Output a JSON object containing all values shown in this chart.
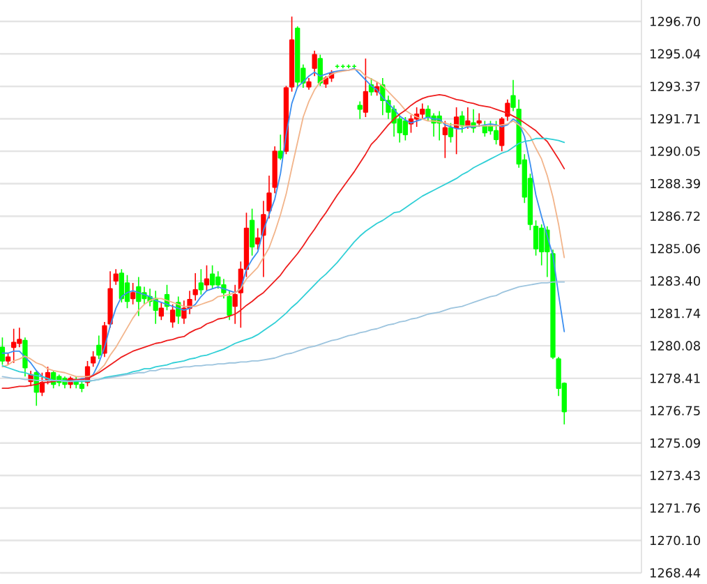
{
  "chart_data": {
    "type": "candlestick",
    "categories": [
      null,
      null,
      null,
      null,
      null,
      null,
      null,
      null,
      null,
      null,
      null,
      null,
      null,
      null,
      null,
      null,
      null,
      null,
      null,
      null,
      null,
      null,
      null,
      null,
      null,
      null,
      null,
      null,
      null,
      null,
      null,
      null,
      null,
      null,
      null,
      null,
      null,
      null,
      null,
      null,
      null,
      null,
      null,
      null,
      null,
      null,
      null,
      null,
      null,
      null,
      null,
      null,
      null,
      null,
      null,
      null,
      null,
      null,
      null,
      null,
      null,
      null,
      null,
      null,
      null,
      null,
      null,
      null,
      null,
      null,
      null,
      null,
      null,
      null,
      null,
      null,
      null,
      null,
      null,
      null,
      null,
      null,
      null,
      null,
      null,
      null,
      null,
      null,
      null,
      null,
      null,
      null,
      null,
      null,
      null,
      null,
      null,
      null,
      null,
      null
    ],
    "ohlc": [
      [
        1280.0,
        1280.5,
        1279.1,
        1279.3
      ],
      [
        1279.3,
        1279.7,
        1279.1,
        1279.5
      ],
      [
        1280.0,
        1280.95,
        1279.2,
        1280.25
      ],
      [
        1280.2,
        1281.0,
        1280.0,
        1280.4
      ],
      [
        1280.35,
        1280.5,
        1278.5,
        1278.95
      ],
      [
        1278.25,
        1278.8,
        1278.0,
        1278.6
      ],
      [
        1278.7,
        1278.8,
        1277.0,
        1277.7
      ],
      [
        1277.7,
        1278.7,
        1277.5,
        1278.2
      ],
      [
        1278.3,
        1279.0,
        1278.1,
        1278.7
      ],
      [
        1278.7,
        1278.8,
        1277.9,
        1278.1
      ],
      [
        1278.5,
        1278.6,
        1278.0,
        1278.2
      ],
      [
        1278.4,
        1278.5,
        1277.9,
        1278.1
      ],
      [
        1278.1,
        1278.5,
        1277.9,
        1278.4
      ],
      [
        1278.3,
        1278.5,
        1277.9,
        1278.1
      ],
      [
        1278.1,
        1278.3,
        1277.7,
        1277.9
      ],
      [
        1278.2,
        1279.3,
        1278.0,
        1279.0
      ],
      [
        1279.2,
        1279.8,
        1279.0,
        1279.5
      ],
      [
        1280.1,
        1280.6,
        1279.4,
        1279.6
      ],
      [
        1279.7,
        1281.3,
        1279.5,
        1281.1
      ],
      [
        1281.2,
        1283.9,
        1281.0,
        1283.0
      ],
      [
        1283.4,
        1284.0,
        1283.2,
        1283.75
      ],
      [
        1283.8,
        1284.0,
        1282.3,
        1282.5
      ],
      [
        1283.3,
        1283.7,
        1282.0,
        1282.35
      ],
      [
        1282.5,
        1283.3,
        1282.2,
        1282.8
      ],
      [
        1283.1,
        1283.6,
        1281.6,
        1282.35
      ],
      [
        1282.8,
        1283.1,
        1282.2,
        1282.5
      ],
      [
        1282.6,
        1283.0,
        1282.1,
        1282.35
      ],
      [
        1282.5,
        1282.9,
        1281.2,
        1281.9
      ],
      [
        1281.6,
        1282.3,
        1281.4,
        1282.0
      ],
      [
        1282.7,
        1283.2,
        1281.9,
        1282.1
      ],
      [
        1281.3,
        1282.2,
        1281.0,
        1281.9
      ],
      [
        1282.3,
        1282.6,
        1281.2,
        1281.6
      ],
      [
        1281.5,
        1282.4,
        1281.2,
        1282.0
      ],
      [
        1282.0,
        1282.9,
        1281.7,
        1282.45
      ],
      [
        1282.7,
        1283.8,
        1282.4,
        1282.95
      ],
      [
        1283.3,
        1284.0,
        1282.7,
        1282.95
      ],
      [
        1283.2,
        1284.2,
        1282.9,
        1283.5
      ],
      [
        1283.75,
        1284.2,
        1283.0,
        1283.2
      ],
      [
        1283.6,
        1283.9,
        1283.0,
        1283.2
      ],
      [
        1283.2,
        1283.5,
        1282.5,
        1282.8
      ],
      [
        1282.6,
        1282.9,
        1281.4,
        1281.65
      ],
      [
        1282.1,
        1283.2,
        1281.2,
        1282.7
      ],
      [
        1282.8,
        1284.4,
        1281.0,
        1284.0
      ],
      [
        1284.0,
        1286.9,
        1283.6,
        1286.1
      ],
      [
        1286.5,
        1287.1,
        1284.7,
        1285.15
      ],
      [
        1285.3,
        1286.1,
        1285.0,
        1285.6
      ],
      [
        1285.75,
        1287.5,
        1283.6,
        1286.8
      ],
      [
        1287.0,
        1288.8,
        1286.6,
        1287.9
      ],
      [
        1288.2,
        1290.3,
        1287.9,
        1290.05
      ],
      [
        1290.05,
        1290.9,
        1289.6,
        1289.7
      ],
      [
        1290.05,
        1293.4,
        1289.9,
        1293.3
      ],
      [
        1293.35,
        1296.95,
        1293.1,
        1295.75
      ],
      [
        1296.35,
        1296.45,
        1293.3,
        1293.6
      ],
      [
        1294.3,
        1294.5,
        1293.3,
        1293.55
      ],
      [
        1293.35,
        1293.8,
        1293.2,
        1293.6
      ],
      [
        1294.3,
        1295.2,
        1293.9,
        1295.0
      ],
      [
        1294.8,
        1295.0,
        1293.4,
        1293.55
      ],
      [
        1293.5,
        1293.9,
        1293.3,
        1293.8
      ],
      [
        1293.8,
        1294.2,
        1293.6,
        1294.05
      ],
      [
        1294.4,
        1294.5,
        1294.3,
        1294.4
      ],
      [
        1294.4,
        1294.5,
        1294.3,
        1294.4
      ],
      [
        1294.4,
        1294.5,
        1294.3,
        1294.4
      ],
      [
        1294.4,
        1294.5,
        1294.3,
        1294.4
      ],
      [
        1292.4,
        1292.6,
        1291.7,
        1292.2
      ],
      [
        1292.05,
        1294.8,
        1291.8,
        1293.1
      ],
      [
        1293.45,
        1293.8,
        1292.9,
        1293.1
      ],
      [
        1293.1,
        1293.6,
        1292.9,
        1293.35
      ],
      [
        1293.45,
        1293.8,
        1291.9,
        1292.65
      ],
      [
        1292.65,
        1292.9,
        1291.7,
        1292.05
      ],
      [
        1292.2,
        1292.4,
        1290.8,
        1291.5
      ],
      [
        1291.7,
        1291.9,
        1290.5,
        1291.0
      ],
      [
        1291.6,
        1291.8,
        1290.6,
        1290.9
      ],
      [
        1291.45,
        1291.9,
        1291.0,
        1291.7
      ],
      [
        1291.7,
        1292.3,
        1291.3,
        1291.95
      ],
      [
        1291.95,
        1292.5,
        1291.7,
        1292.2
      ],
      [
        1292.2,
        1292.4,
        1291.6,
        1291.8
      ],
      [
        1291.85,
        1292.0,
        1290.8,
        1291.5
      ],
      [
        1291.85,
        1292.1,
        1290.6,
        1291.5
      ],
      [
        1290.9,
        1291.6,
        1289.7,
        1291.25
      ],
      [
        1291.25,
        1291.5,
        1290.5,
        1290.8
      ],
      [
        1291.25,
        1292.3,
        1289.9,
        1291.8
      ],
      [
        1291.85,
        1292.1,
        1291.0,
        1291.35
      ],
      [
        1291.35,
        1292.3,
        1291.2,
        1291.6
      ],
      [
        1291.5,
        1292.2,
        1291.0,
        1291.25
      ],
      [
        1291.5,
        1292.0,
        1291.3,
        1291.6
      ],
      [
        1291.35,
        1291.6,
        1290.8,
        1291.0
      ],
      [
        1291.35,
        1291.6,
        1290.9,
        1291.1
      ],
      [
        1291.1,
        1291.6,
        1290.4,
        1290.65
      ],
      [
        1290.35,
        1291.8,
        1290.05,
        1291.7
      ],
      [
        1291.85,
        1292.7,
        1291.6,
        1292.5
      ],
      [
        1292.9,
        1293.7,
        1292.1,
        1292.3
      ],
      [
        1292.2,
        1292.7,
        1289.2,
        1289.4
      ],
      [
        1289.6,
        1289.9,
        1287.4,
        1287.7
      ],
      [
        1288.65,
        1288.9,
        1286.0,
        1286.3
      ],
      [
        1286.2,
        1286.5,
        1284.7,
        1285.05
      ],
      [
        1286.1,
        1286.3,
        1284.2,
        1284.9
      ],
      [
        1286.0,
        1286.2,
        1283.6,
        1284.9
      ],
      [
        1284.8,
        1285.0,
        1279.4,
        1279.5
      ],
      [
        1279.4,
        1279.5,
        1277.5,
        1277.9
      ],
      [
        1278.15,
        1278.2,
        1276.05,
        1276.7
      ]
    ],
    "colors": [
      "#00ff00",
      "#ff0000",
      "#ff0000",
      "#ff0000",
      "#00ff00",
      "#ff0000",
      "#00ff00",
      "#ff0000",
      "#ff0000",
      "#00ff00",
      "#00ff00",
      "#00ff00",
      "#ff0000",
      "#00ff00",
      "#00ff00",
      "#ff0000",
      "#ff0000",
      "#00ff00",
      "#ff0000",
      "#ff0000",
      "#ff0000",
      "#00ff00",
      "#00ff00",
      "#ff0000",
      "#00ff00",
      "#00ff00",
      "#00ff00",
      "#00ff00",
      "#ff0000",
      "#00ff00",
      "#ff0000",
      "#00ff00",
      "#ff0000",
      "#ff0000",
      "#ff0000",
      "#00ff00",
      "#ff0000",
      "#00ff00",
      "#00ff00",
      "#00ff00",
      "#00ff00",
      "#ff0000",
      "#ff0000",
      "#ff0000",
      "#00ff00",
      "#ff0000",
      "#ff0000",
      "#ff0000",
      "#ff0000",
      "#00ff00",
      "#ff0000",
      "#ff0000",
      "#00ff00",
      "#00ff00",
      "#ff0000",
      "#ff0000",
      "#00ff00",
      "#ff0000",
      "#ff0000",
      "#00ff00",
      "#00ff00",
      "#00ff00",
      "#00ff00",
      "#00ff00",
      "#ff0000",
      "#00ff00",
      "#ff0000",
      "#00ff00",
      "#00ff00",
      "#00ff00",
      "#00ff00",
      "#00ff00",
      "#ff0000",
      "#ff0000",
      "#ff0000",
      "#00ff00",
      "#00ff00",
      "#00ff00",
      "#ff0000",
      "#00ff00",
      "#ff0000",
      "#00ff00",
      "#ff0000",
      "#00ff00",
      "#ff0000",
      "#00ff00",
      "#00ff00",
      "#00ff00",
      "#ff0000",
      "#ff0000",
      "#00ff00",
      "#00ff00",
      "#00ff00",
      "#00ff00",
      "#00ff00",
      "#00ff00",
      "#00ff00",
      "#00ff00",
      "#00ff00",
      "#00ff00"
    ],
    "series": [
      {
        "type": "line",
        "color": "#3a8ef0",
        "values": [
          1279.7,
          1279.7,
          1279.8,
          1279.8,
          1279.5,
          1279.2,
          1278.8,
          1278.5,
          1278.4,
          1278.3,
          1278.3,
          1278.3,
          1278.3,
          1278.3,
          1278.4,
          1278.4,
          1278.6,
          1279.2,
          1280.0,
          1281.1,
          1282.0,
          1282.6,
          1282.8,
          1282.9,
          1282.8,
          1282.7,
          1282.6,
          1282.4,
          1282.3,
          1282.2,
          1282.1,
          1282.0,
          1281.9,
          1282.0,
          1282.2,
          1282.6,
          1282.9,
          1283.0,
          1283.1,
          1283.0,
          1282.9,
          1282.8,
          1283.0,
          1284.0,
          1284.5,
          1284.9,
          1286.0,
          1286.8,
          1287.6,
          1288.9,
          1290.9,
          1292.5,
          1293.35,
          1293.6,
          1293.9,
          1294.1,
          1293.9,
          1294.0,
          1294.1,
          1294.15,
          1294.2,
          1294.2,
          1294.3,
          1294.0,
          1293.7,
          1293.4,
          1293.2,
          1292.8,
          1292.5,
          1292.2,
          1291.85,
          1291.65,
          1291.5,
          1291.6,
          1291.7,
          1291.8,
          1291.7,
          1291.7,
          1291.4,
          1291.3,
          1291.2,
          1291.2,
          1291.3,
          1291.3,
          1291.35,
          1291.4,
          1291.45,
          1291.4,
          1291.3,
          1291.4,
          1291.7,
          1291.5,
          1290.8,
          1289.4,
          1287.8,
          1286.7,
          1285.7,
          1284.7,
          1282.7,
          1280.8
        ]
      },
      {
        "type": "line",
        "color": "#f2b48a",
        "values": [
          1279.0,
          1279.1,
          1279.3,
          1279.4,
          1279.55,
          1279.4,
          1279.2,
          1279.1,
          1278.9,
          1278.8,
          1278.75,
          1278.7,
          1278.6,
          1278.5,
          1278.5,
          1278.5,
          1278.55,
          1278.8,
          1279.1,
          1279.6,
          1280.0,
          1280.5,
          1281.0,
          1281.5,
          1281.9,
          1282.2,
          1282.4,
          1282.5,
          1282.5,
          1282.4,
          1282.3,
          1282.2,
          1282.1,
          1282.1,
          1282.1,
          1282.2,
          1282.3,
          1282.4,
          1282.6,
          1282.65,
          1282.7,
          1282.8,
          1283.0,
          1283.5,
          1283.8,
          1284.1,
          1284.6,
          1285.1,
          1285.9,
          1286.8,
          1287.85,
          1289.2,
          1290.5,
          1291.8,
          1292.6,
          1293.2,
          1293.6,
          1293.8,
          1294.0,
          1294.1,
          1294.15,
          1294.2,
          1294.25,
          1294.2,
          1293.9,
          1293.75,
          1293.6,
          1293.4,
          1293.1,
          1292.8,
          1292.5,
          1292.15,
          1291.95,
          1291.8,
          1291.7,
          1291.6,
          1291.6,
          1291.55,
          1291.5,
          1291.4,
          1291.4,
          1291.35,
          1291.35,
          1291.35,
          1291.35,
          1291.35,
          1291.35,
          1291.35,
          1291.4,
          1291.45,
          1291.6,
          1291.4,
          1291.15,
          1290.8,
          1290.2,
          1289.65,
          1288.8,
          1287.7,
          1286.3,
          1284.6
        ]
      },
      {
        "type": "line",
        "color": "#ee1c1c",
        "values": [
          1277.9,
          1277.9,
          1277.95,
          1278.0,
          1278.0,
          1278.05,
          1278.1,
          1278.2,
          1278.2,
          1278.25,
          1278.3,
          1278.3,
          1278.35,
          1278.35,
          1278.35,
          1278.4,
          1278.55,
          1278.7,
          1278.9,
          1279.1,
          1279.3,
          1279.5,
          1279.65,
          1279.8,
          1279.9,
          1280.0,
          1280.1,
          1280.2,
          1280.25,
          1280.35,
          1280.4,
          1280.5,
          1280.55,
          1280.75,
          1280.9,
          1281.0,
          1281.2,
          1281.3,
          1281.45,
          1281.5,
          1281.6,
          1281.7,
          1281.9,
          1282.15,
          1282.35,
          1282.6,
          1282.8,
          1283.1,
          1283.4,
          1283.7,
          1284.1,
          1284.45,
          1284.8,
          1285.2,
          1285.65,
          1286.05,
          1286.5,
          1286.9,
          1287.35,
          1287.8,
          1288.2,
          1288.6,
          1289.0,
          1289.45,
          1289.9,
          1290.4,
          1290.7,
          1291.05,
          1291.4,
          1291.7,
          1291.95,
          1292.15,
          1292.4,
          1292.6,
          1292.75,
          1292.85,
          1292.9,
          1292.95,
          1292.9,
          1292.8,
          1292.7,
          1292.65,
          1292.55,
          1292.5,
          1292.4,
          1292.35,
          1292.3,
          1292.2,
          1292.1,
          1292.0,
          1291.85,
          1291.7,
          1291.5,
          1291.3,
          1291.1,
          1290.8,
          1290.55,
          1290.1,
          1289.65,
          1289.15
        ]
      },
      {
        "type": "line",
        "color": "#2fcfd6",
        "values": [
          1279.05,
          1278.95,
          1278.85,
          1278.75,
          1278.7,
          1278.6,
          1278.55,
          1278.5,
          1278.4,
          1278.3,
          1278.3,
          1278.3,
          1278.25,
          1278.25,
          1278.25,
          1278.25,
          1278.3,
          1278.35,
          1278.45,
          1278.5,
          1278.55,
          1278.6,
          1278.65,
          1278.75,
          1278.8,
          1278.9,
          1278.9,
          1279.0,
          1279.05,
          1279.1,
          1279.2,
          1279.25,
          1279.3,
          1279.4,
          1279.45,
          1279.55,
          1279.6,
          1279.7,
          1279.8,
          1279.9,
          1280.05,
          1280.2,
          1280.3,
          1280.4,
          1280.5,
          1280.65,
          1280.85,
          1281.05,
          1281.25,
          1281.5,
          1281.75,
          1282.05,
          1282.3,
          1282.6,
          1282.9,
          1283.2,
          1283.5,
          1283.75,
          1284.05,
          1284.35,
          1284.7,
          1285.05,
          1285.4,
          1285.7,
          1285.95,
          1286.15,
          1286.35,
          1286.5,
          1286.7,
          1286.9,
          1286.95,
          1287.15,
          1287.35,
          1287.55,
          1287.75,
          1287.9,
          1288.05,
          1288.2,
          1288.35,
          1288.5,
          1288.65,
          1288.85,
          1289.0,
          1289.2,
          1289.35,
          1289.5,
          1289.65,
          1289.8,
          1289.95,
          1290.05,
          1290.25,
          1290.45,
          1290.55,
          1290.6,
          1290.7,
          1290.7,
          1290.7,
          1290.65,
          1290.6,
          1290.5
        ]
      },
      {
        "type": "line",
        "color": "#9cc4de",
        "values": [
          1278.5,
          1278.45,
          1278.4,
          1278.4,
          1278.35,
          1278.35,
          1278.3,
          1278.3,
          1278.3,
          1278.3,
          1278.3,
          1278.25,
          1278.25,
          1278.3,
          1278.3,
          1278.3,
          1278.3,
          1278.35,
          1278.4,
          1278.45,
          1278.5,
          1278.55,
          1278.6,
          1278.65,
          1278.7,
          1278.7,
          1278.8,
          1278.8,
          1278.9,
          1278.9,
          1278.9,
          1278.95,
          1279.0,
          1279.0,
          1279.05,
          1279.05,
          1279.1,
          1279.1,
          1279.15,
          1279.15,
          1279.2,
          1279.2,
          1279.25,
          1279.25,
          1279.3,
          1279.3,
          1279.35,
          1279.4,
          1279.45,
          1279.55,
          1279.65,
          1279.7,
          1279.8,
          1279.9,
          1280.0,
          1280.05,
          1280.15,
          1280.25,
          1280.35,
          1280.4,
          1280.5,
          1280.6,
          1280.65,
          1280.75,
          1280.8,
          1280.9,
          1280.95,
          1281.05,
          1281.15,
          1281.2,
          1281.3,
          1281.35,
          1281.45,
          1281.5,
          1281.6,
          1281.7,
          1281.75,
          1281.8,
          1281.9,
          1282.0,
          1282.05,
          1282.1,
          1282.2,
          1282.3,
          1282.4,
          1282.5,
          1282.6,
          1282.65,
          1282.8,
          1282.9,
          1283.0,
          1283.1,
          1283.15,
          1283.2,
          1283.25,
          1283.3,
          1283.3,
          1283.35,
          1283.35,
          1283.35
        ]
      }
    ],
    "ylim": [
      1268.44,
      1297.8
    ],
    "yticks": [
      1268.44,
      {
        "value": 1270.1,
        "label": "1270.10"
      },
      1271.76,
      1273.43,
      1275.09,
      1276.75,
      1278.41,
      1280.08,
      1281.74,
      {
        "value": 1283.4,
        "label": "1283.40"
      },
      1285.06,
      1286.72,
      1288.39,
      1290.05,
      1291.71,
      1293.37,
      1295.04,
      {
        "value": 1296.7,
        "label": "1296.70"
      }
    ],
    "tick_labels": "y",
    "grid": "y"
  }
}
